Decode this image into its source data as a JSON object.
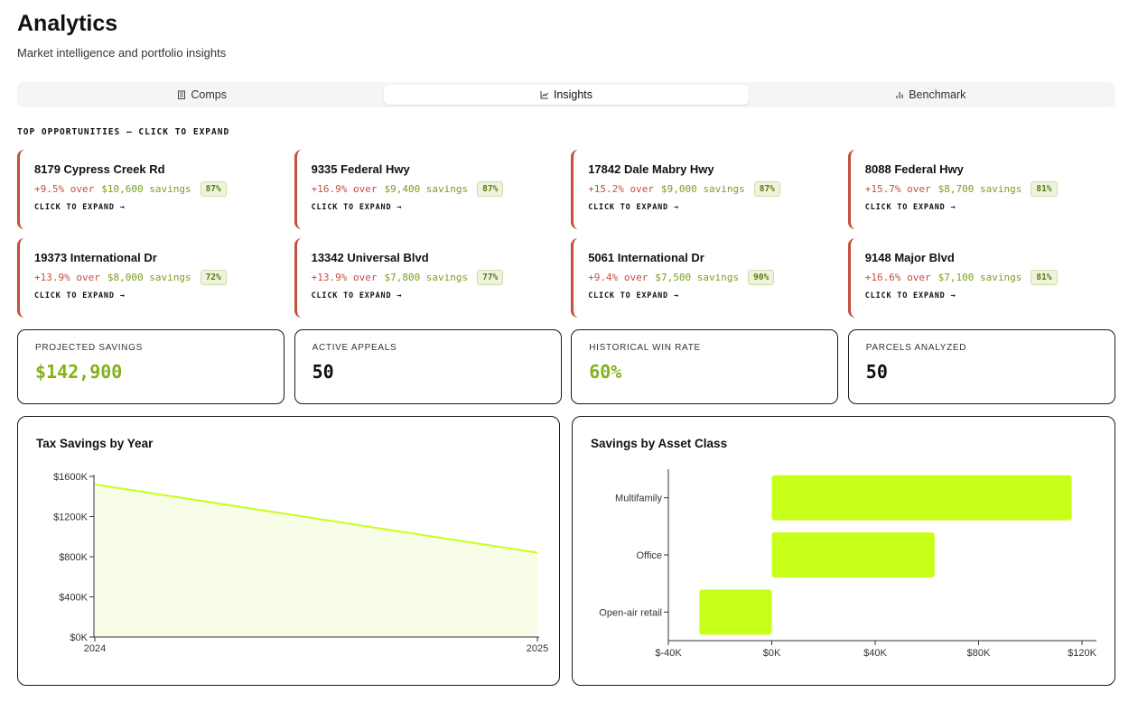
{
  "header": {
    "title": "Analytics",
    "subtitle": "Market intelligence and portfolio insights"
  },
  "tabs": [
    {
      "label": "Comps",
      "icon": "building-icon",
      "active": false
    },
    {
      "label": "Insights",
      "icon": "line-chart-icon",
      "active": true
    },
    {
      "label": "Benchmark",
      "icon": "bar-chart-icon",
      "active": false
    }
  ],
  "opportunities": {
    "section_label": "TOP OPPORTUNITIES — CLICK TO EXPAND",
    "expand_label": "CLICK TO EXPAND →",
    "items": [
      {
        "address": "8179 Cypress Creek Rd",
        "over": "+9.5% over",
        "savings": "$10,600 savings",
        "confidence": "87%"
      },
      {
        "address": "9335 Federal Hwy",
        "over": "+16.9% over",
        "savings": "$9,400 savings",
        "confidence": "87%"
      },
      {
        "address": "17842 Dale Mabry Hwy",
        "over": "+15.2% over",
        "savings": "$9,000 savings",
        "confidence": "87%"
      },
      {
        "address": "8088 Federal Hwy",
        "over": "+15.7% over",
        "savings": "$8,700 savings",
        "confidence": "81%"
      },
      {
        "address": "19373 International Dr",
        "over": "+13.9% over",
        "savings": "$8,000 savings",
        "confidence": "72%"
      },
      {
        "address": "13342 Universal Blvd",
        "over": "+13.9% over",
        "savings": "$7,800 savings",
        "confidence": "77%"
      },
      {
        "address": "5061 International Dr",
        "over": "+9.4% over",
        "savings": "$7,500 savings",
        "confidence": "90%"
      },
      {
        "address": "9148 Major Blvd",
        "over": "+16.6% over",
        "savings": "$7,100 savings",
        "confidence": "81%"
      }
    ]
  },
  "kpis": [
    {
      "label": "PROJECTED SAVINGS",
      "value": "$142,900",
      "accent": true
    },
    {
      "label": "ACTIVE APPEALS",
      "value": "50",
      "accent": false
    },
    {
      "label": "HISTORICAL WIN RATE",
      "value": "60%",
      "accent": true
    },
    {
      "label": "PARCELS ANALYZED",
      "value": "50",
      "accent": false
    }
  ],
  "colors": {
    "accent_green": "#c6ff1a",
    "area_fill": "#f8fde8",
    "over_red": "#c4503e",
    "savings_green": "#79a01c"
  },
  "chart_data": [
    {
      "type": "area",
      "title": "Tax Savings by Year",
      "x": [
        "2024",
        "2025"
      ],
      "values": [
        1520,
        840
      ],
      "ylim": [
        0,
        1600
      ],
      "yticks": [
        0,
        400,
        800,
        1200,
        1600
      ],
      "ytick_labels": [
        "$0K",
        "$400K",
        "$800K",
        "$1200K",
        "$1600K"
      ],
      "grid": false
    },
    {
      "type": "bar",
      "orientation": "horizontal",
      "title": "Savings by Asset Class",
      "categories": [
        "Multifamily",
        "Office",
        "Open-air retail"
      ],
      "values": [
        116,
        63,
        -28
      ],
      "xlim": [
        -40,
        120
      ],
      "xticks": [
        -40,
        0,
        40,
        80,
        120
      ],
      "xtick_labels": [
        "$-40K",
        "$0K",
        "$40K",
        "$80K",
        "$120K"
      ],
      "grid": false
    }
  ]
}
